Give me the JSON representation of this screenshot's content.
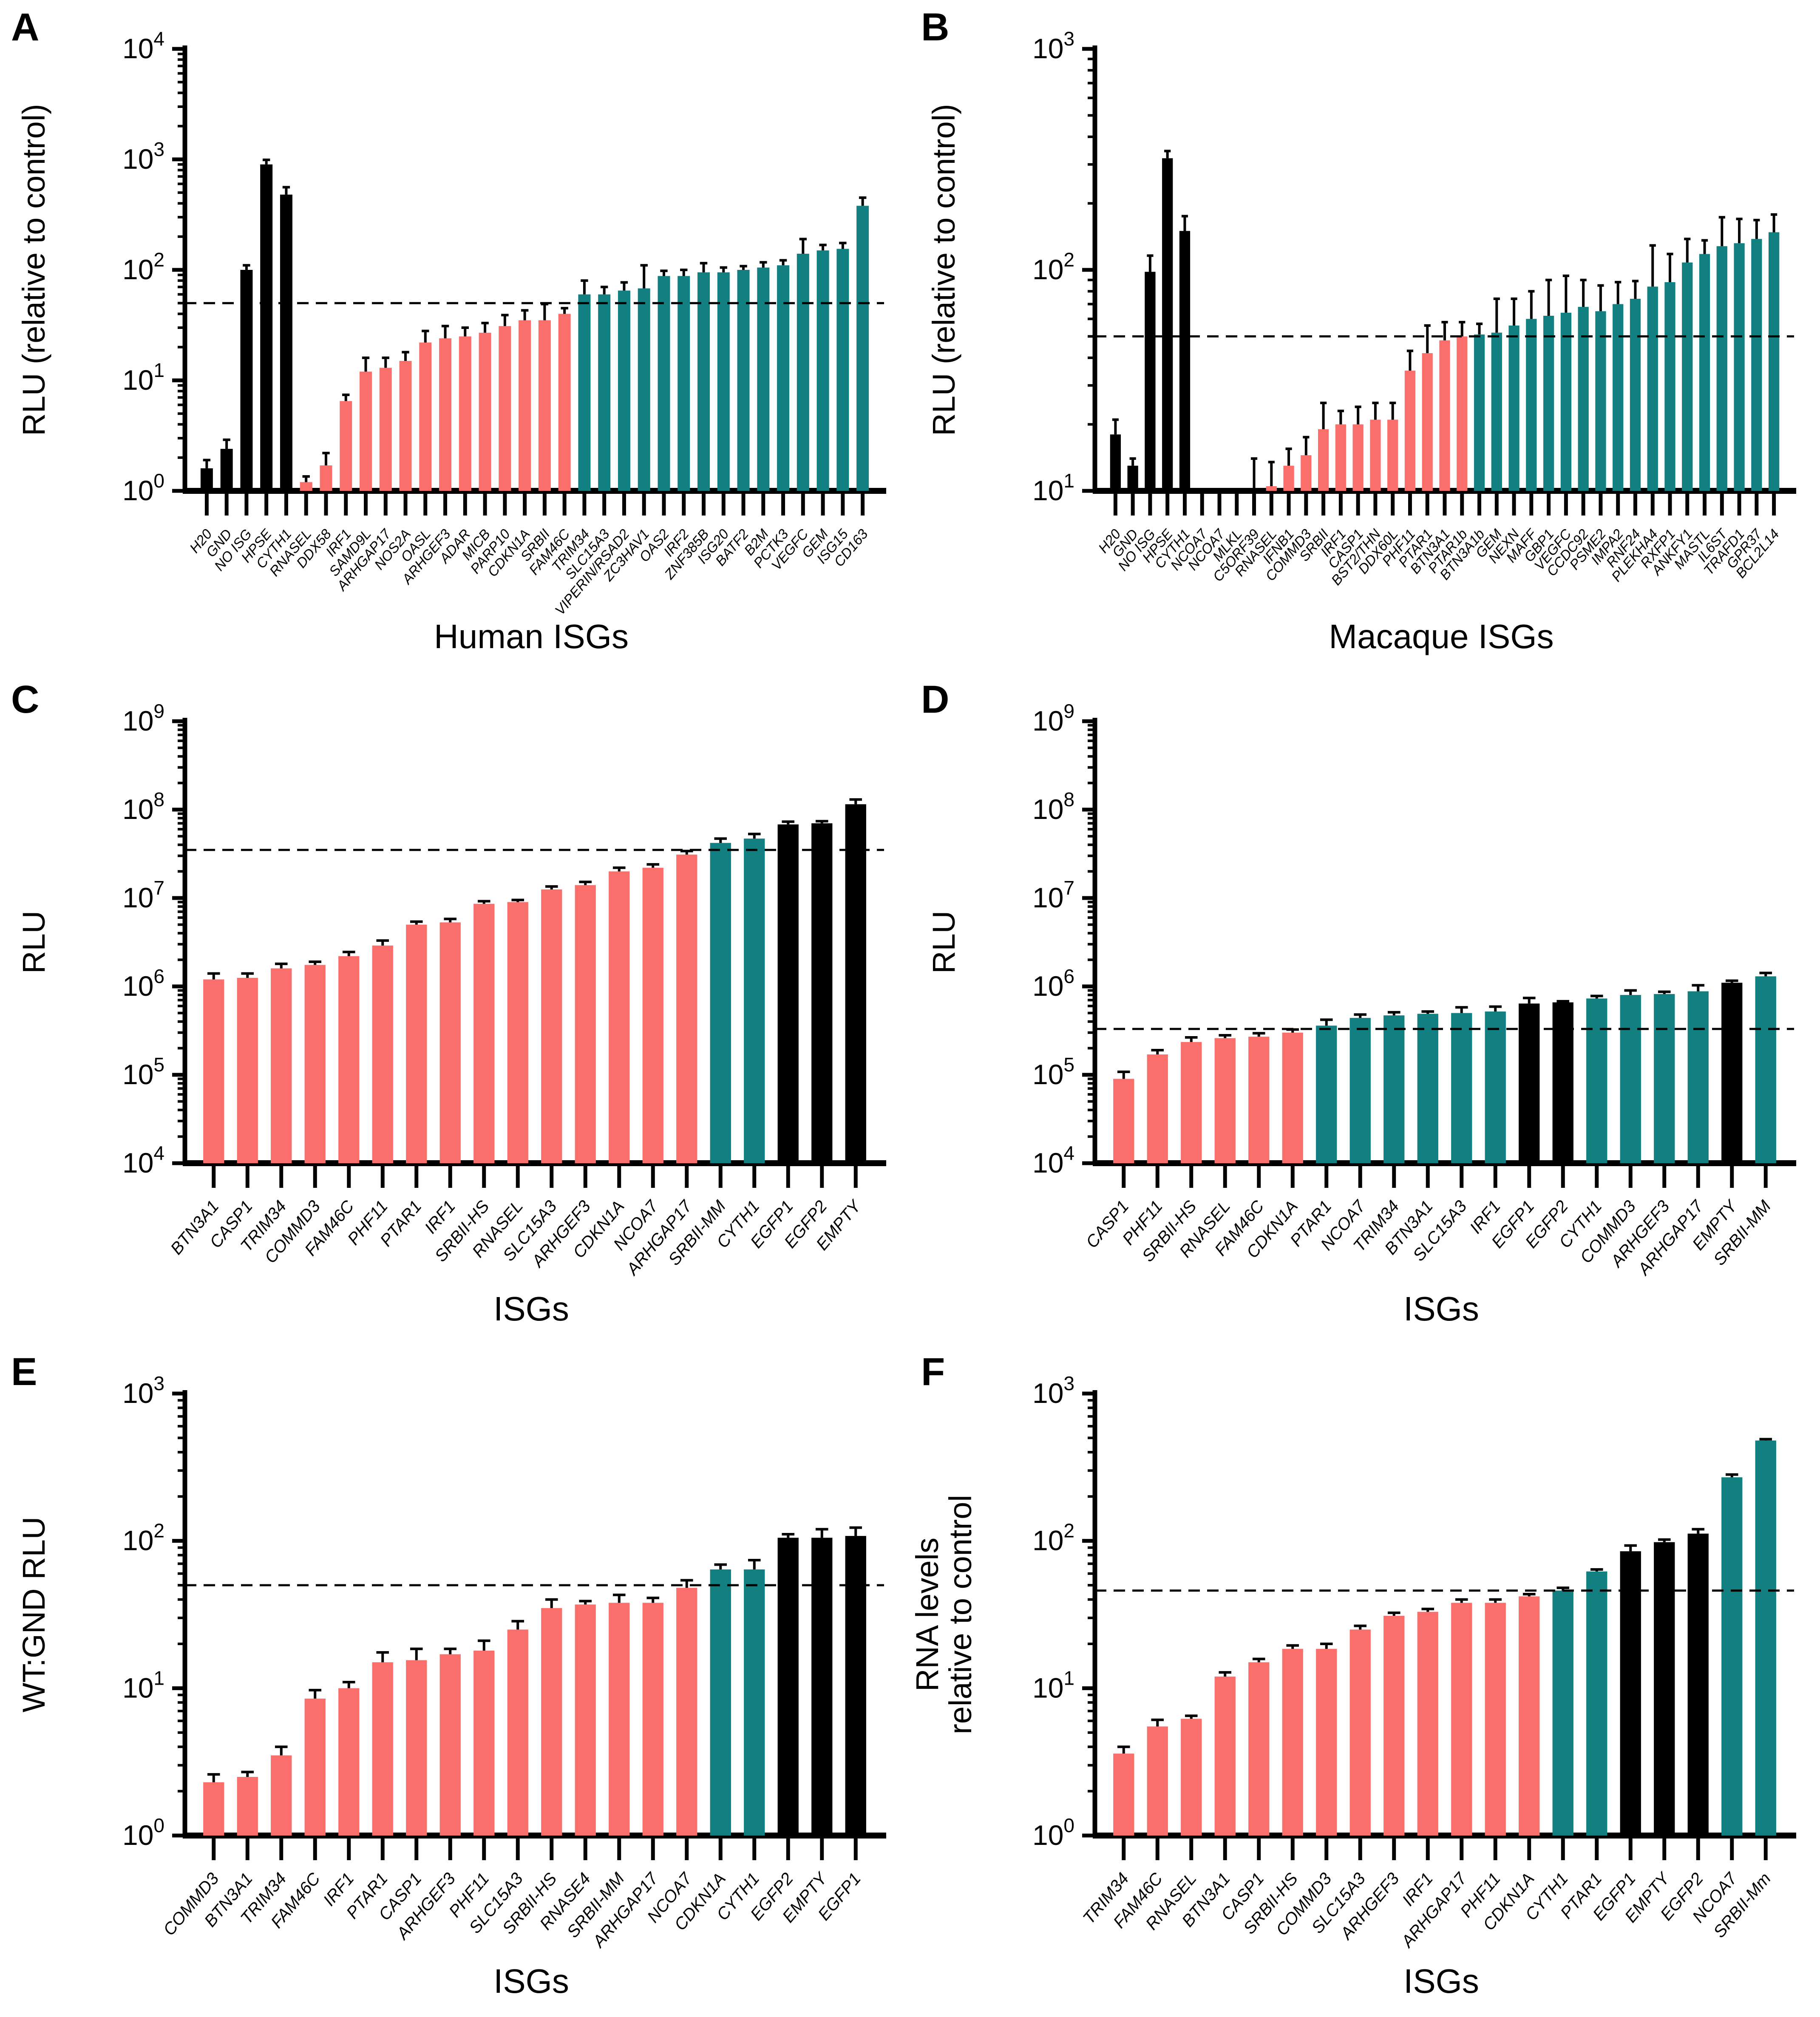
{
  "figure_title": "",
  "colors": {
    "salmon": "#FA6F6C",
    "teal": "#127F80",
    "black": "#000000",
    "axis": "#000000"
  },
  "bars_format": "[label, value, error, colorKey] — value null means no visible bar",
  "chart_data": [
    {
      "type": "bar",
      "letter": "A",
      "ylabel": [
        "RLU (relative to control)"
      ],
      "xlabel": "Human ISGs",
      "yscale": "log",
      "ylim_exponents": [
        0,
        4
      ],
      "dashed_line": 50,
      "grid": false,
      "legend": "none",
      "bars": [
        [
          "H20",
          1.6,
          0.3,
          "black"
        ],
        [
          "GND",
          2.4,
          0.5,
          "black"
        ],
        [
          "NO ISG",
          100,
          10,
          "black"
        ],
        [
          "HPSE",
          900,
          90,
          "black"
        ],
        [
          "CYTH1",
          480,
          80,
          "black"
        ],
        [
          "RNASEL",
          1.2,
          0.15,
          "salmon"
        ],
        [
          "DDX58",
          1.7,
          0.5,
          "salmon"
        ],
        [
          "IRF1",
          6.5,
          0.9,
          "salmon"
        ],
        [
          "SAMD9L",
          12,
          4,
          "salmon"
        ],
        [
          "ARHGAP17",
          13,
          3,
          "salmon"
        ],
        [
          "NOS2A",
          15,
          3,
          "salmon"
        ],
        [
          "OASL",
          22,
          6,
          "salmon"
        ],
        [
          "ARHGEF3",
          24,
          7,
          "salmon"
        ],
        [
          "ADAR",
          25,
          5,
          "salmon"
        ],
        [
          "MICB",
          27,
          6,
          "salmon"
        ],
        [
          "PARP10",
          31,
          8,
          "salmon"
        ],
        [
          "CDKN1A",
          35,
          8,
          "salmon"
        ],
        [
          "SRBII",
          35,
          14,
          "salmon"
        ],
        [
          "FAM46C",
          40,
          5,
          "salmon"
        ],
        [
          "TRIM34",
          60,
          20,
          "teal"
        ],
        [
          "SLC15A3",
          60,
          10,
          "teal"
        ],
        [
          "VIPERIN/RSAD2",
          65,
          12,
          "teal"
        ],
        [
          "ZC3HAV1",
          68,
          42,
          "teal"
        ],
        [
          "OAS2",
          88,
          10,
          "teal"
        ],
        [
          "IRF2",
          88,
          12,
          "teal"
        ],
        [
          "ZNF385B",
          95,
          20,
          "teal"
        ],
        [
          "ISG20",
          95,
          10,
          "teal"
        ],
        [
          "BATF2",
          100,
          8,
          "teal"
        ],
        [
          "B2M",
          105,
          12,
          "teal"
        ],
        [
          "PCTK3",
          110,
          12,
          "teal"
        ],
        [
          "VEGFC",
          140,
          50,
          "teal"
        ],
        [
          "GEM",
          150,
          18,
          "teal"
        ],
        [
          "ISG15",
          155,
          20,
          "teal"
        ],
        [
          "CD163",
          380,
          70,
          "teal"
        ]
      ]
    },
    {
      "type": "bar",
      "letter": "B",
      "ylabel": [
        "RLU (relative to control)"
      ],
      "xlabel": "Macaque ISGs",
      "yscale": "log",
      "ylim_exponents": [
        1,
        3
      ],
      "dashed_line": 50,
      "grid": false,
      "legend": "none",
      "bars": [
        [
          "H20",
          18,
          3,
          "black"
        ],
        [
          "GND",
          13,
          1,
          "black"
        ],
        [
          "NO ISG",
          98,
          18,
          "black"
        ],
        [
          "HPSE",
          320,
          25,
          "black"
        ],
        [
          "CYTH1",
          150,
          25,
          "black"
        ],
        [
          "NCOA7",
          null,
          null,
          "salmon"
        ],
        [
          "NCOA7",
          null,
          null,
          "salmon"
        ],
        [
          "MLKL",
          null,
          null,
          "salmon"
        ],
        [
          "C5ORF39",
          10,
          4,
          "salmon"
        ],
        [
          "RNASEL",
          10.5,
          3,
          "salmon"
        ],
        [
          "IFNB1",
          13,
          2.5,
          "salmon"
        ],
        [
          "COMMD3",
          14.5,
          3,
          "salmon"
        ],
        [
          "SRBII",
          19,
          6,
          "salmon"
        ],
        [
          "IRF1",
          20,
          3,
          "salmon"
        ],
        [
          "CASP1",
          20,
          4,
          "salmon"
        ],
        [
          "BST2/THN",
          21,
          4,
          "salmon"
        ],
        [
          "DDX60L",
          21,
          4,
          "salmon"
        ],
        [
          "PHF11",
          35,
          8,
          "salmon"
        ],
        [
          "PTAR1",
          42,
          14,
          "salmon"
        ],
        [
          "BTN3A1",
          48,
          10,
          "salmon"
        ],
        [
          "PTAR1b",
          50,
          8,
          "salmon"
        ],
        [
          "BTN3A1b",
          51,
          6,
          "teal"
        ],
        [
          "GEM",
          52,
          22,
          "teal"
        ],
        [
          "NEXN",
          56,
          18,
          "teal"
        ],
        [
          "MAFF",
          60,
          20,
          "teal"
        ],
        [
          "GBP1",
          62,
          28,
          "teal"
        ],
        [
          "VEGFC",
          64,
          30,
          "teal"
        ],
        [
          "CCDC92",
          68,
          22,
          "teal"
        ],
        [
          "PSME2",
          65,
          20,
          "teal"
        ],
        [
          "IMPA2",
          70,
          18,
          "teal"
        ],
        [
          "RNF24",
          74,
          15,
          "teal"
        ],
        [
          "PLEKHA4",
          84,
          45,
          "teal"
        ],
        [
          "RXFP1",
          88,
          30,
          "teal"
        ],
        [
          "ANKFY1",
          108,
          30,
          "teal"
        ],
        [
          "MASTL",
          118,
          18,
          "teal"
        ],
        [
          "IL6ST",
          128,
          45,
          "teal"
        ],
        [
          "TRAFD1",
          132,
          38,
          "teal"
        ],
        [
          "GPR37",
          138,
          30,
          "teal"
        ],
        [
          "BCL2L14",
          148,
          30,
          "teal"
        ]
      ]
    },
    {
      "type": "bar",
      "letter": "C",
      "ylabel": [
        "RLU"
      ],
      "xlabel": "ISGs",
      "yscale": "log",
      "ylim_exponents": [
        4,
        9
      ],
      "dashed_line": 35000000,
      "grid": false,
      "legend": "none",
      "bars": [
        [
          "BTN3A1",
          1200000,
          200000,
          "salmon"
        ],
        [
          "CASP1",
          1250000,
          150000,
          "salmon"
        ],
        [
          "TRIM34",
          1600000,
          200000,
          "salmon"
        ],
        [
          "COMMD3",
          1750000,
          150000,
          "salmon"
        ],
        [
          "FAM46C",
          2200000,
          250000,
          "salmon"
        ],
        [
          "PHF11",
          2900000,
          400000,
          "salmon"
        ],
        [
          "PTAR1",
          5000000,
          400000,
          "salmon"
        ],
        [
          "IRF1",
          5300000,
          500000,
          "salmon"
        ],
        [
          "SRBII-HS",
          8600000,
          600000,
          "salmon"
        ],
        [
          "RNASEL",
          9000000,
          500000,
          "salmon"
        ],
        [
          "SLC15A3",
          12500000,
          1000000,
          "salmon"
        ],
        [
          "ARHGEF3",
          14000000,
          1200000,
          "salmon"
        ],
        [
          "CDKN1A",
          20000000,
          2000000,
          "salmon"
        ],
        [
          "NCOA7",
          22000000,
          2000000,
          "salmon"
        ],
        [
          "ARHGAP17",
          31000000,
          3000000,
          "salmon"
        ],
        [
          "SRBII-MM",
          42000000,
          5000000,
          "teal"
        ],
        [
          "CYTH1",
          47000000,
          6000000,
          "teal"
        ],
        [
          "EGFP1",
          68000000,
          5000000,
          "black"
        ],
        [
          "EGFP2",
          70000000,
          4000000,
          "black"
        ],
        [
          "EMPTY",
          115000000,
          15000000,
          "black"
        ]
      ]
    },
    {
      "type": "bar",
      "letter": "D",
      "ylabel": [
        "RLU"
      ],
      "xlabel": "ISGs",
      "yscale": "log",
      "ylim_exponents": [
        4,
        9
      ],
      "dashed_line": 330000,
      "grid": false,
      "legend": "none",
      "bars": [
        [
          "CASP1",
          90000,
          18000,
          "salmon"
        ],
        [
          "PHF11",
          170000,
          20000,
          "salmon"
        ],
        [
          "SRBII-HS",
          235000,
          30000,
          "salmon"
        ],
        [
          "RNASEL",
          260000,
          20000,
          "salmon"
        ],
        [
          "FAM46C",
          270000,
          25000,
          "salmon"
        ],
        [
          "CDKN1A",
          300000,
          25000,
          "salmon"
        ],
        [
          "PTAR1",
          360000,
          60000,
          "teal"
        ],
        [
          "NCOA7",
          440000,
          40000,
          "teal"
        ],
        [
          "TRIM34",
          470000,
          40000,
          "teal"
        ],
        [
          "BTN3A1",
          490000,
          30000,
          "teal"
        ],
        [
          "SLC15A3",
          500000,
          80000,
          "teal"
        ],
        [
          "IRF1",
          520000,
          70000,
          "teal"
        ],
        [
          "EGFP1",
          640000,
          100000,
          "black"
        ],
        [
          "EGFP2",
          660000,
          20000,
          "black"
        ],
        [
          "CYTH1",
          730000,
          50000,
          "teal"
        ],
        [
          "COMMD3",
          800000,
          100000,
          "teal"
        ],
        [
          "ARHGEF3",
          820000,
          50000,
          "teal"
        ],
        [
          "ARHGAP17",
          880000,
          150000,
          "teal"
        ],
        [
          "EMPTY",
          1100000,
          60000,
          "black"
        ],
        [
          "SRBII-MM",
          1300000,
          120000,
          "teal"
        ]
      ]
    },
    {
      "type": "bar",
      "letter": "E",
      "ylabel": [
        "WT:GND RLU"
      ],
      "xlabel": "ISGs",
      "yscale": "log",
      "ylim_exponents": [
        0,
        3
      ],
      "dashed_line": 50,
      "grid": false,
      "legend": "none",
      "bars": [
        [
          "COMMD3",
          2.3,
          0.3,
          "salmon"
        ],
        [
          "BTN3A1",
          2.5,
          0.2,
          "salmon"
        ],
        [
          "TRIM34",
          3.5,
          0.5,
          "salmon"
        ],
        [
          "FAM46C",
          8.5,
          1.2,
          "salmon"
        ],
        [
          "IRF1",
          10,
          1,
          "salmon"
        ],
        [
          "PTAR1",
          15,
          2.5,
          "salmon"
        ],
        [
          "CASP1",
          15.5,
          3,
          "salmon"
        ],
        [
          "ARHGEF3",
          17,
          1.5,
          "salmon"
        ],
        [
          "PHF11",
          18,
          3,
          "salmon"
        ],
        [
          "SLC15A3",
          25,
          3.5,
          "salmon"
        ],
        [
          "SRBII-HS",
          35,
          5,
          "salmon"
        ],
        [
          "RNASE4",
          37,
          2,
          "salmon"
        ],
        [
          "SRBII-MM",
          38,
          5,
          "salmon"
        ],
        [
          "ARHGAP17",
          38,
          3,
          "salmon"
        ],
        [
          "NCOA7",
          48,
          6,
          "salmon"
        ],
        [
          "CDKN1A",
          64,
          5,
          "teal"
        ],
        [
          "CYTH1",
          64,
          10,
          "teal"
        ],
        [
          "EGFP2",
          105,
          6,
          "black"
        ],
        [
          "EMPTY",
          105,
          15,
          "black"
        ],
        [
          "EGFP1",
          108,
          15,
          "black"
        ]
      ]
    },
    {
      "type": "bar",
      "letter": "F",
      "ylabel": [
        "RNA levels",
        "relative to control"
      ],
      "xlabel": "ISGs",
      "yscale": "log",
      "ylim_exponents": [
        0,
        3
      ],
      "dashed_line": 46,
      "grid": false,
      "legend": "none",
      "bars": [
        [
          "TRIM34",
          3.6,
          0.4,
          "salmon"
        ],
        [
          "FAM46C",
          5.5,
          0.6,
          "salmon"
        ],
        [
          "RNASEL",
          6.2,
          0.3,
          "salmon"
        ],
        [
          "BTN3A1",
          12,
          0.8,
          "salmon"
        ],
        [
          "CASP1",
          15,
          0.8,
          "salmon"
        ],
        [
          "SRBII-HS",
          18.5,
          1,
          "salmon"
        ],
        [
          "COMMD3",
          18.5,
          1.5,
          "salmon"
        ],
        [
          "SLC15A3",
          25,
          1.5,
          "salmon"
        ],
        [
          "ARHGEF3",
          31,
          1.5,
          "salmon"
        ],
        [
          "IRF1",
          33,
          1.5,
          "salmon"
        ],
        [
          "ARHGAP17",
          38,
          2,
          "salmon"
        ],
        [
          "PHF11",
          38,
          2,
          "salmon"
        ],
        [
          "CDKN1A",
          42,
          1.5,
          "salmon"
        ],
        [
          "CYTH1",
          46,
          2,
          "teal"
        ],
        [
          "PTAR1",
          62,
          2,
          "teal"
        ],
        [
          "EGFP1",
          85,
          8,
          "black"
        ],
        [
          "EMPTY",
          98,
          4,
          "black"
        ],
        [
          "EGFP2",
          112,
          8,
          "black"
        ],
        [
          "NCOA7",
          270,
          12,
          "teal"
        ],
        [
          "SRBII-Mm",
          480,
          10,
          "teal"
        ]
      ]
    }
  ],
  "panels": {
    "0": {
      "letter": "A"
    },
    "1": {
      "letter": "B"
    },
    "2": {
      "letter": "C"
    },
    "3": {
      "letter": "D"
    },
    "4": {
      "letter": "E"
    },
    "5": {
      "letter": "F"
    }
  }
}
